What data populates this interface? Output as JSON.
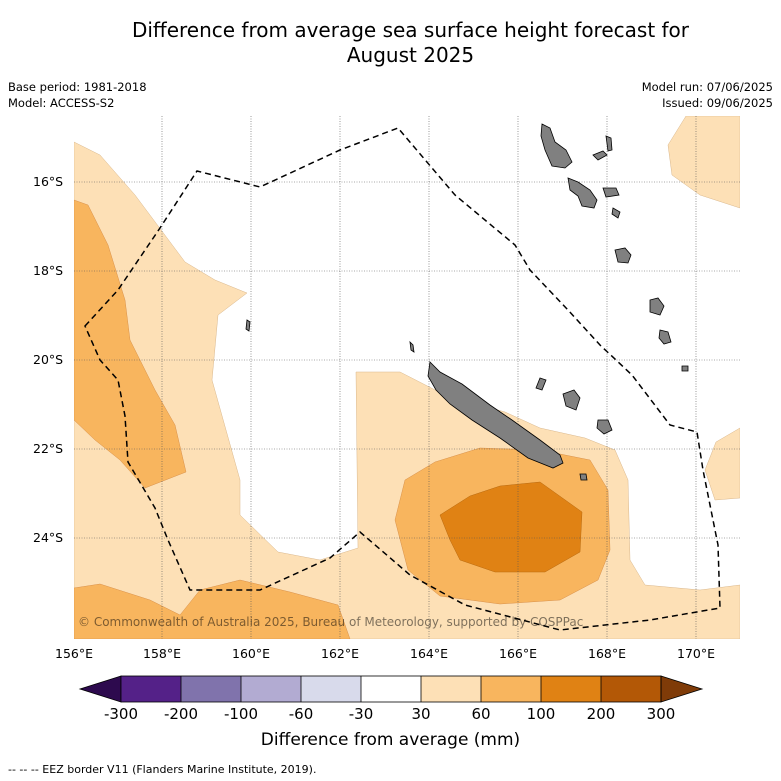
{
  "title": {
    "line1": "Difference from average sea surface height forecast for",
    "line2": "August 2025"
  },
  "meta_left": {
    "base_period": "Base period: 1981-2018",
    "model": "Model: ACCESS-S2"
  },
  "meta_right": {
    "model_run": "Model run: 07/06/2025",
    "issued": "Issued: 09/06/2025"
  },
  "map": {
    "lat_labels": [
      "16°S",
      "18°S",
      "20°S",
      "22°S",
      "24°S"
    ],
    "lon_labels": [
      "156°E",
      "158°E",
      "160°E",
      "162°E",
      "164°E",
      "166°E",
      "168°E",
      "170°E"
    ],
    "copyright": "© Commonwealth of Australia 2025, Bureau of Meteorology, supported by COSPPac",
    "land_color": "#808080",
    "eez_style": "dashed black line"
  },
  "colorbar": {
    "label": "Difference from average (mm)",
    "ticks": [
      "-300",
      "-200",
      "-100",
      "-60",
      "-30",
      "30",
      "60",
      "100",
      "200",
      "300"
    ],
    "colors": {
      "below_-300": "#2d0a4e",
      "-300_-200": "#542188",
      "-200_-100": "#8073ac",
      "-100_-60": "#b2abd2",
      "-60_-30": "#d8daeb",
      "-30_30": "#ffffff",
      "30_60": "#fde0b6",
      "60_100": "#f8b55e",
      "100_200": "#e08214",
      "200_300": "#b35806",
      "above_300": "#7f3b08"
    }
  },
  "footnote": "--  --  -- EEZ border V11 (Flanders Marine Institute, 2019)."
}
